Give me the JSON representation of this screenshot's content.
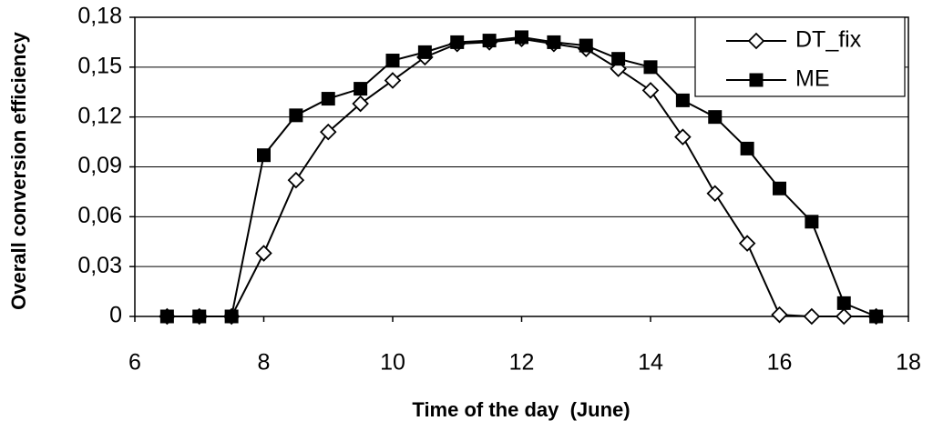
{
  "chart_data": {
    "type": "line",
    "x_label": "Time of the day  (June)",
    "y_label": "Overall conversion efficiency",
    "x": [
      6.5,
      7,
      7.5,
      8,
      8.5,
      9,
      9.5,
      10,
      10.5,
      11,
      11.5,
      12,
      12.5,
      13,
      13.5,
      14,
      14.5,
      15,
      15.5,
      16,
      16.5,
      17,
      17.5
    ],
    "series": [
      {
        "name": "DT_fix",
        "color": "#000000",
        "marker": "diamond",
        "values": [
          0,
          0,
          0,
          0.038,
          0.082,
          0.111,
          0.128,
          0.142,
          0.156,
          0.164,
          0.165,
          0.167,
          0.164,
          0.161,
          0.149,
          0.136,
          0.108,
          0.074,
          0.044,
          0.001,
          0,
          0,
          0
        ]
      },
      {
        "name": "ME",
        "color": "#000000",
        "marker": "square",
        "values": [
          0,
          0,
          0,
          0.097,
          0.121,
          0.131,
          0.137,
          0.154,
          0.159,
          0.165,
          0.166,
          0.168,
          0.165,
          0.163,
          0.155,
          0.15,
          0.13,
          0.12,
          0.101,
          0.077,
          0.057,
          0.008,
          0
        ]
      }
    ],
    "xlim": [
      6,
      18
    ],
    "xticks": [
      6,
      8,
      10,
      12,
      14,
      16,
      18
    ],
    "ylim": [
      0,
      0.18
    ],
    "yticks": [
      0,
      {
        "value": 0.03,
        "label": "0,03"
      },
      {
        "value": 0.06,
        "label": "0,06"
      },
      {
        "value": 0.09,
        "label": "0,09"
      },
      {
        "value": 0.12,
        "label": "0,12"
      },
      {
        "value": 0.15,
        "label": "0,15"
      },
      {
        "value": 0.18,
        "label": "0,18"
      }
    ],
    "grid": true,
    "legend": "upper right"
  }
}
